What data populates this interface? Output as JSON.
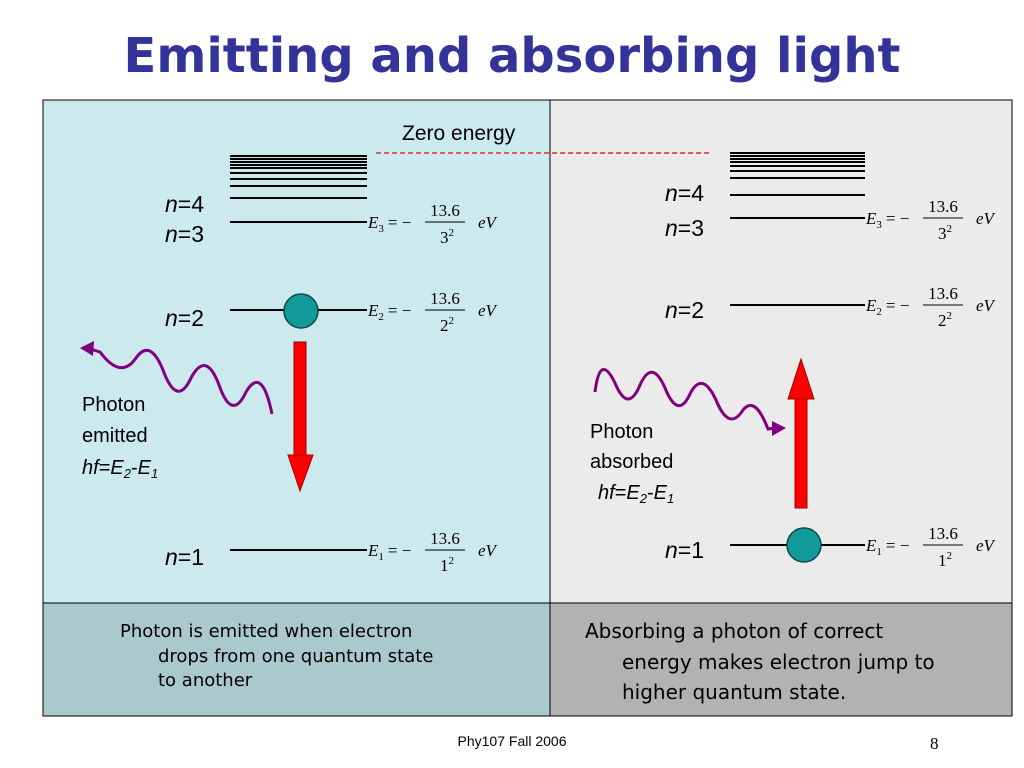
{
  "title": "Emitting and absorbing light",
  "zero_energy": "Zero energy",
  "emission": {
    "levels": [
      {
        "symbol": "n",
        "value": "=4"
      },
      {
        "symbol": "n",
        "value": "=3"
      },
      {
        "symbol": "n",
        "value": "=2"
      },
      {
        "symbol": "n",
        "value": "=1"
      }
    ],
    "equations": [
      {
        "name": "E",
        "sub": "3",
        "sign": "= −",
        "num": "13.6",
        "den": "3",
        "exp": "2",
        "unit": "eV"
      },
      {
        "name": "E",
        "sub": "2",
        "sign": "= −",
        "num": "13.6",
        "den": "2",
        "exp": "2",
        "unit": "eV"
      },
      {
        "name": "E",
        "sub": "1",
        "sign": "= −",
        "num": "13.6",
        "den": "1",
        "exp": "2",
        "unit": "eV"
      }
    ],
    "photon": {
      "line1": "Photon",
      "line2": "emitted",
      "formula": {
        "hf": "hf",
        "eq": "=",
        "e_a": "E",
        "sub_a": "2",
        "minus": "-",
        "e_b": "E",
        "sub_b": "1"
      }
    },
    "caption": [
      "Photon is emitted when electron",
      "drops from one quantum state",
      "to another"
    ]
  },
  "absorption": {
    "levels": [
      {
        "symbol": "n",
        "value": "=4"
      },
      {
        "symbol": "n",
        "value": "=3"
      },
      {
        "symbol": "n",
        "value": "=2"
      },
      {
        "symbol": "n",
        "value": "=1"
      }
    ],
    "equations": [
      {
        "name": "E",
        "sub": "3",
        "sign": "= −",
        "num": "13.6",
        "den": "3",
        "exp": "2",
        "unit": "eV"
      },
      {
        "name": "E",
        "sub": "2",
        "sign": "= −",
        "num": "13.6",
        "den": "2",
        "exp": "2",
        "unit": "eV"
      },
      {
        "name": "E",
        "sub": "1",
        "sign": "= −",
        "num": "13.6",
        "den": "1",
        "exp": "2",
        "unit": "eV"
      }
    ],
    "photon": {
      "line1": "Photon",
      "line2": "absorbed",
      "formula": {
        "hf": "hf",
        "eq": "=",
        "e_a": "E",
        "sub_a": "2",
        "minus": "-",
        "e_b": "E",
        "sub_b": "1"
      }
    },
    "caption": [
      "Absorbing a photon of correct",
      "energy makes electron jump to",
      "higher quantum state."
    ]
  },
  "footer": "Phy107 Fall 2006",
  "page_number": "8"
}
